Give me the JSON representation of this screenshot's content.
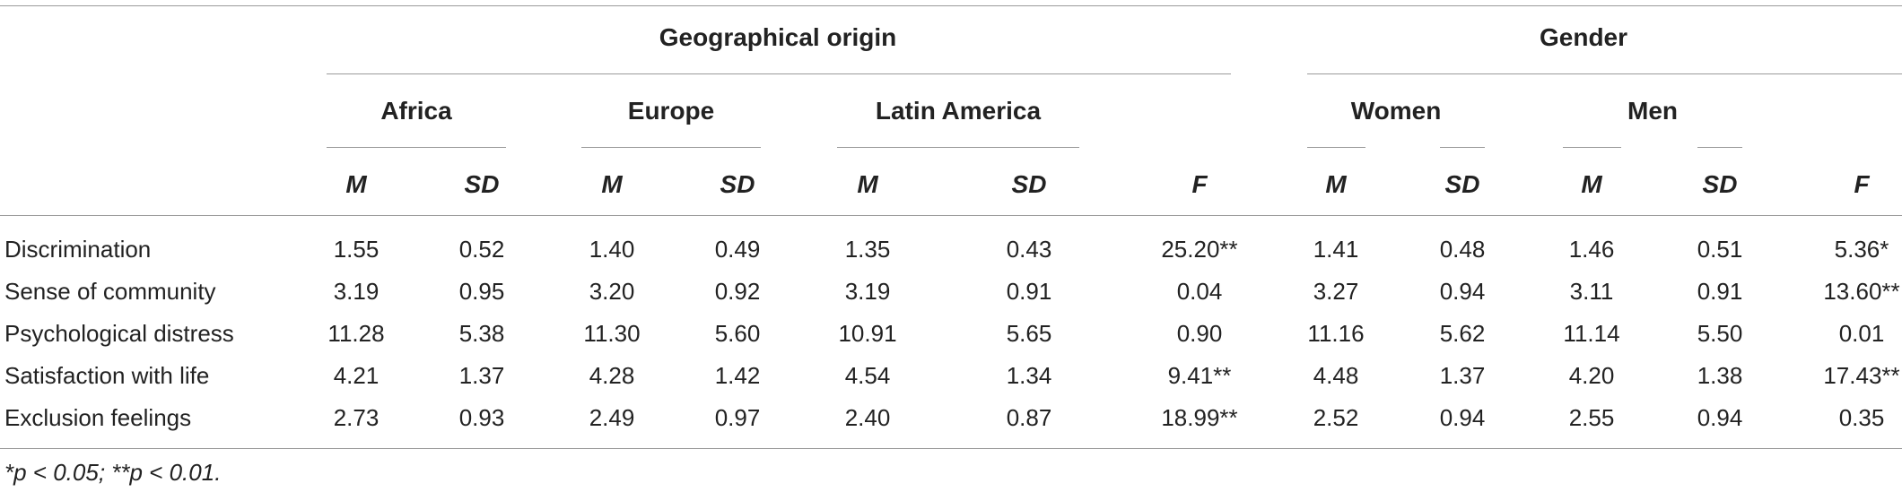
{
  "table": {
    "group_headers": [
      {
        "label": "Geographical origin"
      },
      {
        "label": "Gender"
      }
    ],
    "sub_headers": [
      "Africa",
      "Europe",
      "Latin America",
      "Women",
      "Men"
    ],
    "stat_headers": [
      "M",
      "SD",
      "M",
      "SD",
      "M",
      "SD",
      "F",
      "M",
      "SD",
      "M",
      "SD",
      "F"
    ],
    "rows": [
      {
        "label": "Discrimination",
        "values": [
          "1.55",
          "0.52",
          "1.40",
          "0.49",
          "1.35",
          "0.43",
          "25.20**",
          "1.41",
          "0.48",
          "1.46",
          "0.51",
          "5.36*"
        ]
      },
      {
        "label": "Sense of community",
        "values": [
          "3.19",
          "0.95",
          "3.20",
          "0.92",
          "3.19",
          "0.91",
          "0.04",
          "3.27",
          "0.94",
          "3.11",
          "0.91",
          "13.60**"
        ]
      },
      {
        "label": "Psychological distress",
        "values": [
          "11.28",
          "5.38",
          "11.30",
          "5.60",
          "10.91",
          "5.65",
          "0.90",
          "11.16",
          "5.62",
          "11.14",
          "5.50",
          "0.01"
        ]
      },
      {
        "label": "Satisfaction with life",
        "values": [
          "4.21",
          "1.37",
          "4.28",
          "1.42",
          "4.54",
          "1.34",
          "9.41**",
          "4.48",
          "1.37",
          "4.20",
          "1.38",
          "17.43**"
        ]
      },
      {
        "label": "Exclusion feelings",
        "values": [
          "2.73",
          "0.93",
          "2.49",
          "0.97",
          "2.40",
          "0.87",
          "18.99**",
          "2.52",
          "0.94",
          "2.55",
          "0.94",
          "0.35"
        ]
      }
    ],
    "footnote": "*p < 0.05; **p < 0.01."
  }
}
